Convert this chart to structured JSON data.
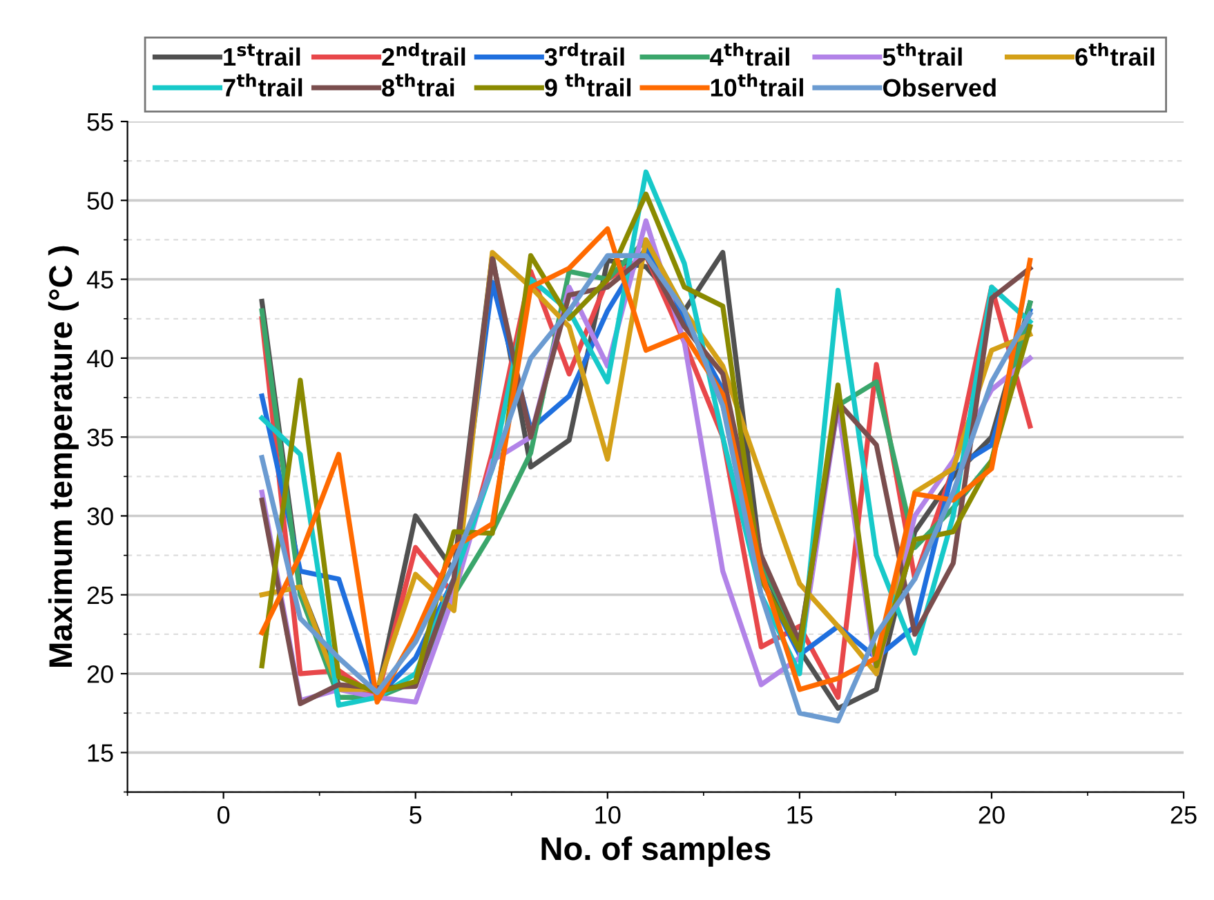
{
  "chart_data": {
    "type": "line",
    "xlabel": "No. of samples",
    "ylabel": "Maximum temperature (°C )",
    "x": [
      1,
      2,
      3,
      4,
      5,
      6,
      7,
      8,
      9,
      10,
      11,
      12,
      13,
      14,
      15,
      16,
      17,
      18,
      19,
      20,
      21
    ],
    "xlim": [
      -2.5,
      25
    ],
    "xticks": [
      0,
      5,
      10,
      15,
      20,
      25
    ],
    "ylim": [
      12.5,
      55
    ],
    "yticks": [
      15,
      20,
      25,
      30,
      35,
      40,
      45,
      50,
      55
    ],
    "grid": "y",
    "legend": "top",
    "marker": "none",
    "line_style": "solid",
    "series": [
      {
        "name": "1$^{st}$trail",
        "color": "#505050",
        "values": [
          43.6,
          25.5,
          19.3,
          18.7,
          30.0,
          26.5,
          46.5,
          33.1,
          34.8,
          46.2,
          45.8,
          43,
          46.7,
          27,
          21.5,
          17.8,
          19.0,
          29,
          32.5,
          35,
          43.5
        ]
      },
      {
        "name": "2$^{nd}$trail",
        "color": "#e8474a",
        "values": [
          42.5,
          20.0,
          20.2,
          18.5,
          28.0,
          25,
          34,
          45.5,
          39.0,
          45,
          46.5,
          41,
          35,
          21.7,
          23,
          18.5,
          39.6,
          26,
          33,
          44.5,
          35.7
        ]
      },
      {
        "name": "3$^{rd}$trail",
        "color": "#1f6fde",
        "values": [
          37.6,
          26.5,
          26.0,
          18.5,
          21,
          26,
          44.8,
          35.5,
          37.6,
          43,
          47,
          42.5,
          38,
          26,
          21.2,
          23,
          21,
          23,
          33,
          34.5,
          43
        ]
      },
      {
        "name": "4$^{th}$trail",
        "color": "#3aa66b",
        "values": [
          43,
          25,
          18.5,
          18.5,
          19.5,
          25,
          29,
          34,
          45.5,
          45,
          47.5,
          43,
          37,
          27,
          22,
          37,
          38.5,
          28,
          30.5,
          33.5,
          43.5
        ]
      },
      {
        "name": "5$^{th}$trail",
        "color": "#b283e8",
        "values": [
          31.5,
          18.3,
          19,
          18.5,
          18.2,
          25,
          33.5,
          35,
          44.5,
          39.5,
          48.7,
          41,
          26.5,
          19.3,
          21,
          37,
          20,
          30,
          33.5,
          38,
          40
        ]
      },
      {
        "name": "6$^{th}$trail",
        "color": "#d4a017",
        "values": [
          25,
          25.5,
          19,
          19,
          26.3,
          24,
          46.7,
          44.5,
          42,
          33.6,
          47.5,
          43,
          39.5,
          32.5,
          25.7,
          23,
          20,
          31.5,
          33,
          40.5,
          41.5
        ]
      },
      {
        "name": "7$^{th}$trail",
        "color": "#17c9c9",
        "values": [
          36.2,
          33.9,
          18,
          18.5,
          20,
          26,
          33,
          45,
          43,
          38.5,
          51.8,
          46,
          35,
          25,
          20,
          44.3,
          27.5,
          21.3,
          30,
          44.5,
          42.3
        ]
      },
      {
        "name": "8$^{th}$trai",
        "color": "#7a4e4e",
        "values": [
          31,
          18.1,
          19.3,
          19.1,
          19.2,
          26,
          46.3,
          35,
          44,
          44.5,
          46.5,
          42,
          39,
          27.5,
          22,
          37.2,
          34.5,
          22.5,
          27,
          43.8,
          45.7
        ]
      },
      {
        "name": "9 $^{th}$trail",
        "color": "#8a8a00",
        "values": [
          20.5,
          38.6,
          19.8,
          18.8,
          19.5,
          29,
          28.9,
          46.5,
          42.5,
          45,
          50.4,
          44.5,
          43.3,
          26,
          21.5,
          38.3,
          20.5,
          28.5,
          29,
          33.5,
          42
        ]
      },
      {
        "name": "10$^{th}$trail",
        "color": "#ff6a00",
        "values": [
          22.6,
          27.5,
          33.9,
          18.2,
          22.5,
          28,
          29.5,
          44.5,
          45.7,
          48.2,
          40.5,
          41.5,
          37.7,
          26.5,
          19,
          19.7,
          21,
          31.4,
          31,
          33,
          46.2
        ]
      },
      {
        "name": "Observed",
        "color": "#6b9bd1",
        "values": [
          33.7,
          23.5,
          21,
          18.8,
          22,
          27,
          33,
          40,
          43,
          46.5,
          46.5,
          43,
          37,
          25,
          17.5,
          17.0,
          22.5,
          26,
          31.5,
          38.5,
          42.8
        ]
      }
    ]
  }
}
